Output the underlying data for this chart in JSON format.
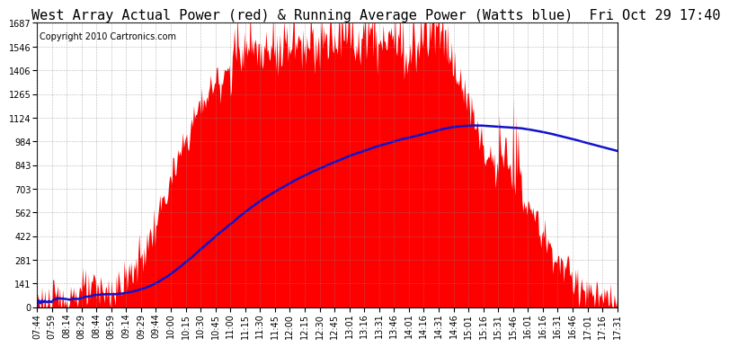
{
  "title": "West Array Actual Power (red) & Running Average Power (Watts blue)  Fri Oct 29 17:40",
  "copyright": "Copyright 2010 Cartronics.com",
  "bg_color": "#ffffff",
  "plot_bg_color": "#ffffff",
  "grid_color": "#888888",
  "y_max": 1686.6,
  "y_min": 0.0,
  "y_ticks": [
    0.0,
    140.6,
    281.1,
    421.7,
    562.2,
    702.8,
    843.3,
    983.9,
    1124.4,
    1265.0,
    1405.5,
    1546.1,
    1686.6
  ],
  "x_labels": [
    "07:44",
    "07:59",
    "08:14",
    "08:29",
    "08:44",
    "08:59",
    "09:14",
    "09:29",
    "09:44",
    "10:00",
    "10:15",
    "10:30",
    "10:45",
    "11:00",
    "11:15",
    "11:30",
    "11:45",
    "12:00",
    "12:15",
    "12:30",
    "12:45",
    "13:01",
    "13:16",
    "13:31",
    "13:46",
    "14:01",
    "14:16",
    "14:31",
    "14:46",
    "15:01",
    "15:16",
    "15:31",
    "15:46",
    "16:01",
    "16:16",
    "16:31",
    "16:46",
    "17:01",
    "17:16",
    "17:31"
  ],
  "red_color": "#ff0000",
  "blue_color": "#1111cc",
  "title_fontsize": 11,
  "copyright_fontsize": 7,
  "axis_fontsize": 7,
  "tick_fontsize": 7
}
